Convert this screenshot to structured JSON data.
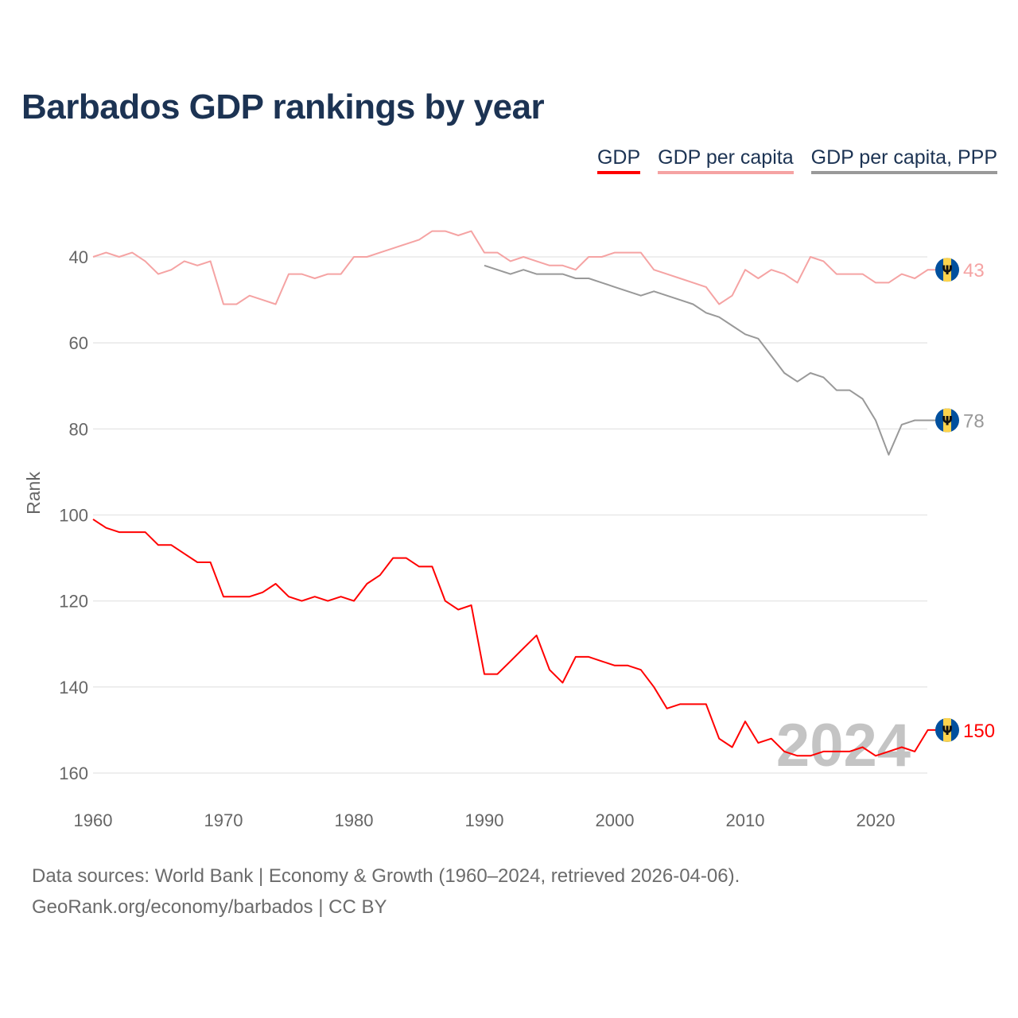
{
  "chart_data": {
    "type": "line",
    "title": "Barbados GDP rankings by year",
    "xlabel": "",
    "ylabel": "Rank",
    "xlim": [
      1960,
      2024
    ],
    "ylim": [
      30,
      165
    ],
    "y_inverted": true,
    "grid": true,
    "legend_position": "top-right",
    "x_ticks": [
      1960,
      1970,
      1980,
      1990,
      2000,
      2010,
      2020
    ],
    "y_ticks": [
      40,
      60,
      80,
      100,
      120,
      140,
      160
    ],
    "watermark_year": "2024",
    "series": [
      {
        "name": "GDP",
        "color": "#ff0000",
        "start_year": 1960,
        "end_label": "150",
        "values": [
          101,
          103,
          104,
          104,
          104,
          107,
          107,
          109,
          111,
          111,
          119,
          119,
          119,
          118,
          116,
          119,
          120,
          119,
          120,
          119,
          120,
          116,
          114,
          110,
          110,
          112,
          112,
          120,
          122,
          121,
          137,
          137,
          134,
          131,
          128,
          136,
          139,
          133,
          133,
          134,
          135,
          135,
          136,
          140,
          145,
          144,
          144,
          144,
          152,
          154,
          148,
          153,
          152,
          155,
          156,
          156,
          155,
          155,
          155,
          154,
          156,
          155,
          154,
          155,
          150
        ]
      },
      {
        "name": "GDP per capita",
        "color": "#f5a3a3",
        "start_year": 1960,
        "end_label": "43",
        "values": [
          40,
          39,
          40,
          39,
          41,
          44,
          43,
          41,
          42,
          41,
          51,
          51,
          49,
          50,
          51,
          44,
          44,
          45,
          44,
          44,
          40,
          40,
          39,
          38,
          37,
          36,
          34,
          34,
          35,
          34,
          39,
          39,
          41,
          40,
          41,
          42,
          42,
          43,
          40,
          40,
          39,
          39,
          39,
          43,
          44,
          45,
          46,
          47,
          51,
          49,
          43,
          45,
          43,
          44,
          46,
          40,
          41,
          44,
          44,
          44,
          46,
          46,
          44,
          45,
          43
        ]
      },
      {
        "name": "GDP per capita, PPP",
        "color": "#999999",
        "start_year": 1990,
        "end_label": "78",
        "values": [
          42,
          43,
          44,
          43,
          44,
          44,
          44,
          45,
          45,
          46,
          47,
          48,
          49,
          48,
          49,
          50,
          51,
          53,
          54,
          56,
          58,
          59,
          63,
          67,
          69,
          67,
          68,
          71,
          71,
          73,
          78,
          86,
          79,
          78,
          78
        ]
      }
    ]
  },
  "footer": {
    "line1": "Data sources: World Bank | Economy & Growth (1960–2024, retrieved 2026-04-06).",
    "line2": "GeoRank.org/economy/barbados | CC BY"
  },
  "flag_icon": "barbados-flag-icon"
}
